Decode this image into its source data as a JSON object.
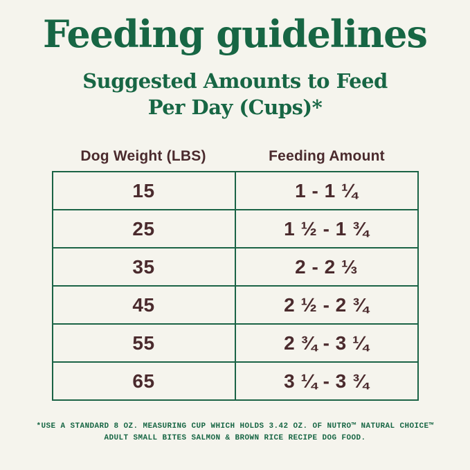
{
  "page": {
    "title": "Feeding guidelines",
    "subtitle_line1": "Suggested Amounts to Feed",
    "subtitle_line2": "Per Day (Cups)*"
  },
  "table": {
    "headers": [
      "Dog Weight (LBS)",
      "Feeding Amount"
    ],
    "rows": [
      {
        "weight": "15",
        "amount": "1 - 1 ¼"
      },
      {
        "weight": "25",
        "amount": "1 ½ - 1 ¾"
      },
      {
        "weight": "35",
        "amount": "2 - 2 ⅓"
      },
      {
        "weight": "45",
        "amount": "2 ½ - 2 ¾"
      },
      {
        "weight": "55",
        "amount": "2 ¾ - 3 ¼"
      },
      {
        "weight": "65",
        "amount": "3 ¼ - 3 ¾"
      }
    ]
  },
  "footnote": {
    "line1": "*USE A STANDARD 8 OZ. MEASURING CUP WHICH HOLDS 3.42 OZ. OF NUTRO™ NATURAL CHOICE™",
    "line2": "ADULT SMALL BITES SALMON & BROWN RICE RECIPE DOG FOOD."
  },
  "colors": {
    "background": "#F5F4ED",
    "heading_green": "#176644",
    "table_border_green": "#1A6345",
    "text_maroon": "#4A2A2D"
  },
  "chart_data": {
    "type": "table",
    "title": "Feeding guidelines",
    "subtitle": "Suggested Amounts to Feed Per Day (Cups)*",
    "columns": [
      "Dog Weight (LBS)",
      "Feeding Amount"
    ],
    "rows": [
      [
        "15",
        "1 - 1 ¼"
      ],
      [
        "25",
        "1 ½ - 1 ¾"
      ],
      [
        "35",
        "2 - 2 ⅓"
      ],
      [
        "45",
        "2 ½ - 2 ¾"
      ],
      [
        "55",
        "2 ¾ - 3 ¼"
      ],
      [
        "65",
        "3 ¼ - 3 ¾"
      ]
    ],
    "weights_lbs": [
      15,
      25,
      35,
      45,
      55,
      65
    ],
    "feeding_amount_cups_ranges": [
      [
        1,
        1.25
      ],
      [
        1.5,
        1.75
      ],
      [
        2,
        2.333
      ],
      [
        2.5,
        2.75
      ],
      [
        2.75,
        3.25
      ],
      [
        3.25,
        3.75
      ]
    ],
    "footnote": "*USE A STANDARD 8 OZ. MEASURING CUP WHICH HOLDS 3.42 OZ. OF NUTRO™ NATURAL CHOICE™ ADULT SMALL BITES SALMON & BROWN RICE RECIPE DOG FOOD."
  }
}
